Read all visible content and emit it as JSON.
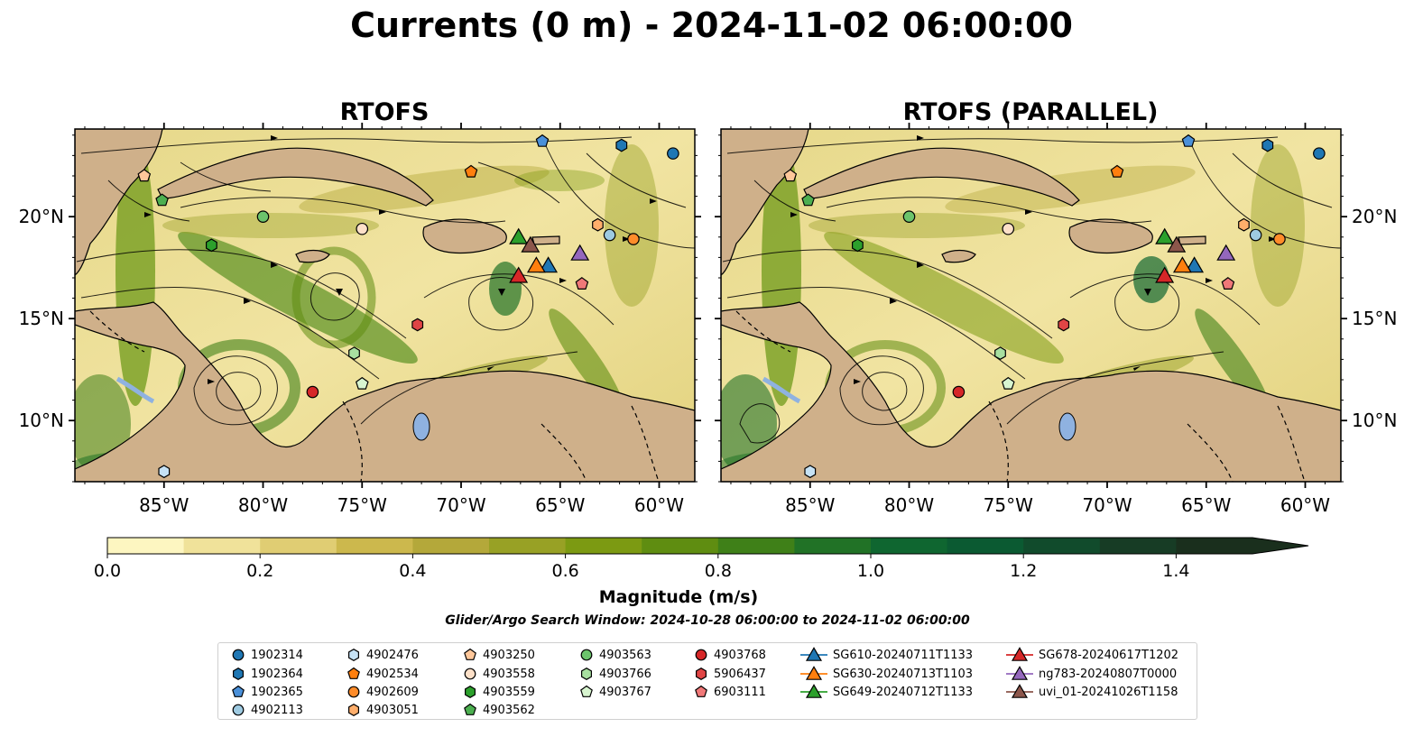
{
  "title": "Currents (0 m) - 2024-11-02 06:00:00",
  "panels": [
    {
      "id": "left",
      "title": "RTOFS"
    },
    {
      "id": "right",
      "title": "RTOFS (PARALLEL)"
    }
  ],
  "map": {
    "lon_range": [
      -89.5,
      -58.2
    ],
    "lat_range": [
      7.0,
      24.3
    ],
    "lon_ticks": [
      {
        "value": -85,
        "label": "85°W"
      },
      {
        "value": -80,
        "label": "80°W"
      },
      {
        "value": -75,
        "label": "75°W"
      },
      {
        "value": -70,
        "label": "70°W"
      },
      {
        "value": -65,
        "label": "65°W"
      },
      {
        "value": -60,
        "label": "60°W"
      }
    ],
    "lat_ticks": [
      {
        "value": 10,
        "label": "10°N"
      },
      {
        "value": 15,
        "label": "15°N"
      },
      {
        "value": 20,
        "label": "20°N"
      }
    ],
    "colors": {
      "land": "#cfb08a",
      "ocean_low": "#f3e6a4",
      "lake": "#8fb2e0"
    }
  },
  "colorbar": {
    "label": "Magnitude (m/s)",
    "min": 0.0,
    "max": 1.5,
    "extend": "max",
    "ticks": [
      {
        "value": 0.0,
        "label": "0.0"
      },
      {
        "value": 0.2,
        "label": "0.2"
      },
      {
        "value": 0.4,
        "label": "0.4"
      },
      {
        "value": 0.6,
        "label": "0.6"
      },
      {
        "value": 0.8,
        "label": "0.8"
      },
      {
        "value": 1.0,
        "label": "1.0"
      },
      {
        "value": 1.2,
        "label": "1.2"
      },
      {
        "value": 1.4,
        "label": "1.4"
      }
    ],
    "colors": [
      "#fdf6c1",
      "#f0e29a",
      "#e0cd73",
      "#ccb84d",
      "#b4a83a",
      "#98a125",
      "#7c9a12",
      "#5f8d11",
      "#3f8018",
      "#217226",
      "#0f6630",
      "#0b5a32",
      "#114b2c",
      "#173c25",
      "#1a2f1d"
    ]
  },
  "search_window": "Glider/Argo Search Window: 2024-10-28 06:00:00 to 2024-11-02 06:00:00",
  "legend": [
    {
      "label": "1902314",
      "marker": "circle",
      "color": "#1f77b4"
    },
    {
      "label": "1902364",
      "marker": "hexagon",
      "color": "#1f77b4"
    },
    {
      "label": "1902365",
      "marker": "pentagon",
      "color": "#4a90d9"
    },
    {
      "label": "4902113",
      "marker": "circle",
      "color": "#9ecae1"
    },
    {
      "label": "4902476",
      "marker": "hexagon",
      "color": "#c6e2f5"
    },
    {
      "label": "4902534",
      "marker": "pentagon",
      "color": "#ff7f0e"
    },
    {
      "label": "4902609",
      "marker": "circle",
      "color": "#ff8c2a"
    },
    {
      "label": "4903051",
      "marker": "hexagon",
      "color": "#ffae6b"
    },
    {
      "label": "4903250",
      "marker": "pentagon",
      "color": "#ffc79a"
    },
    {
      "label": "4903558",
      "marker": "circle",
      "color": "#fde0c8"
    },
    {
      "label": "4903559",
      "marker": "hexagon",
      "color": "#2ca02c"
    },
    {
      "label": "4903562",
      "marker": "pentagon",
      "color": "#4caf50"
    },
    {
      "label": "4903563",
      "marker": "circle",
      "color": "#6cc46c"
    },
    {
      "label": "4903766",
      "marker": "hexagon",
      "color": "#a8e0a0"
    },
    {
      "label": "4903767",
      "marker": "pentagon",
      "color": "#d8f5d0"
    },
    {
      "label": "4903768",
      "marker": "circle",
      "color": "#d62728"
    },
    {
      "label": "5906437",
      "marker": "hexagon",
      "color": "#e04545"
    },
    {
      "label": "6903111",
      "marker": "pentagon",
      "color": "#f07878"
    },
    {
      "label": "SG610-20240711T1133",
      "marker": "triangle",
      "color": "#1f77b4"
    },
    {
      "label": "SG630-20240713T1103",
      "marker": "triangle",
      "color": "#ff7f0e"
    },
    {
      "label": "SG649-20240712T1133",
      "marker": "triangle",
      "color": "#2ca02c"
    },
    {
      "label": "SG678-20240617T1202",
      "marker": "triangle",
      "color": "#d62728"
    },
    {
      "label": "ng783-20240807T0000",
      "marker": "triangle",
      "color": "#9467bd"
    },
    {
      "label": "uvi_01-20241026T1158",
      "marker": "triangle",
      "color": "#8c564b"
    }
  ],
  "argo_positions": {
    "left": [
      {
        "id": "1902314",
        "lon": -59.3,
        "lat": 23.1
      },
      {
        "id": "1902364",
        "lon": -61.9,
        "lat": 23.5
      },
      {
        "id": "1902365",
        "lon": -65.9,
        "lat": 23.7
      },
      {
        "id": "4902113",
        "lon": -62.5,
        "lat": 19.1
      },
      {
        "id": "4902476",
        "lon": -85.0,
        "lat": 7.5
      },
      {
        "id": "4902534",
        "lon": -69.5,
        "lat": 22.2
      },
      {
        "id": "4902609",
        "lon": -61.3,
        "lat": 18.9
      },
      {
        "id": "4903051",
        "lon": -63.1,
        "lat": 19.6
      },
      {
        "id": "4903250",
        "lon": -86.0,
        "lat": 22.0
      },
      {
        "id": "4903558",
        "lon": -75.0,
        "lat": 19.4
      },
      {
        "id": "4903559",
        "lon": -82.6,
        "lat": 18.6
      },
      {
        "id": "4903562",
        "lon": -85.1,
        "lat": 20.8
      },
      {
        "id": "4903563",
        "lon": -80.0,
        "lat": 20.0
      },
      {
        "id": "4903766",
        "lon": -75.4,
        "lat": 13.3
      },
      {
        "id": "4903767",
        "lon": -75.0,
        "lat": 11.8
      },
      {
        "id": "4903768",
        "lon": -77.5,
        "lat": 11.4
      },
      {
        "id": "5906437",
        "lon": -72.2,
        "lat": 14.7
      },
      {
        "id": "6903111",
        "lon": -63.9,
        "lat": 16.7
      }
    ],
    "right": [
      {
        "id": "1902314",
        "lon": -59.3,
        "lat": 23.1
      },
      {
        "id": "1902364",
        "lon": -61.9,
        "lat": 23.5
      },
      {
        "id": "1902365",
        "lon": -65.9,
        "lat": 23.7
      },
      {
        "id": "4902113",
        "lon": -62.5,
        "lat": 19.1
      },
      {
        "id": "4902476",
        "lon": -85.0,
        "lat": 7.5
      },
      {
        "id": "4902534",
        "lon": -69.5,
        "lat": 22.2
      },
      {
        "id": "4902609",
        "lon": -61.3,
        "lat": 18.9
      },
      {
        "id": "4903051",
        "lon": -63.1,
        "lat": 19.6
      },
      {
        "id": "4903250",
        "lon": -86.0,
        "lat": 22.0
      },
      {
        "id": "4903558",
        "lon": -75.0,
        "lat": 19.4
      },
      {
        "id": "4903559",
        "lon": -82.6,
        "lat": 18.6
      },
      {
        "id": "4903562",
        "lon": -85.1,
        "lat": 20.8
      },
      {
        "id": "4903563",
        "lon": -80.0,
        "lat": 20.0
      },
      {
        "id": "4903766",
        "lon": -75.4,
        "lat": 13.3
      },
      {
        "id": "4903767",
        "lon": -75.0,
        "lat": 11.8
      },
      {
        "id": "4903768",
        "lon": -77.5,
        "lat": 11.4
      },
      {
        "id": "5906437",
        "lon": -72.2,
        "lat": 14.7
      },
      {
        "id": "6903111",
        "lon": -63.9,
        "lat": 16.7
      }
    ]
  },
  "glider_positions": [
    {
      "id": "SG610-20240711T1133",
      "lon": -65.6,
      "lat": 17.6
    },
    {
      "id": "SG630-20240713T1103",
      "lon": -66.2,
      "lat": 17.6
    },
    {
      "id": "SG649-20240712T1133",
      "lon": -67.1,
      "lat": 19.0
    },
    {
      "id": "SG678-20240617T1202",
      "lon": -67.1,
      "lat": 17.1
    },
    {
      "id": "ng783-20240807T0000",
      "lon": -64.0,
      "lat": 18.2
    },
    {
      "id": "uvi_01-20241026T1158",
      "lon": -66.5,
      "lat": 18.6
    }
  ]
}
